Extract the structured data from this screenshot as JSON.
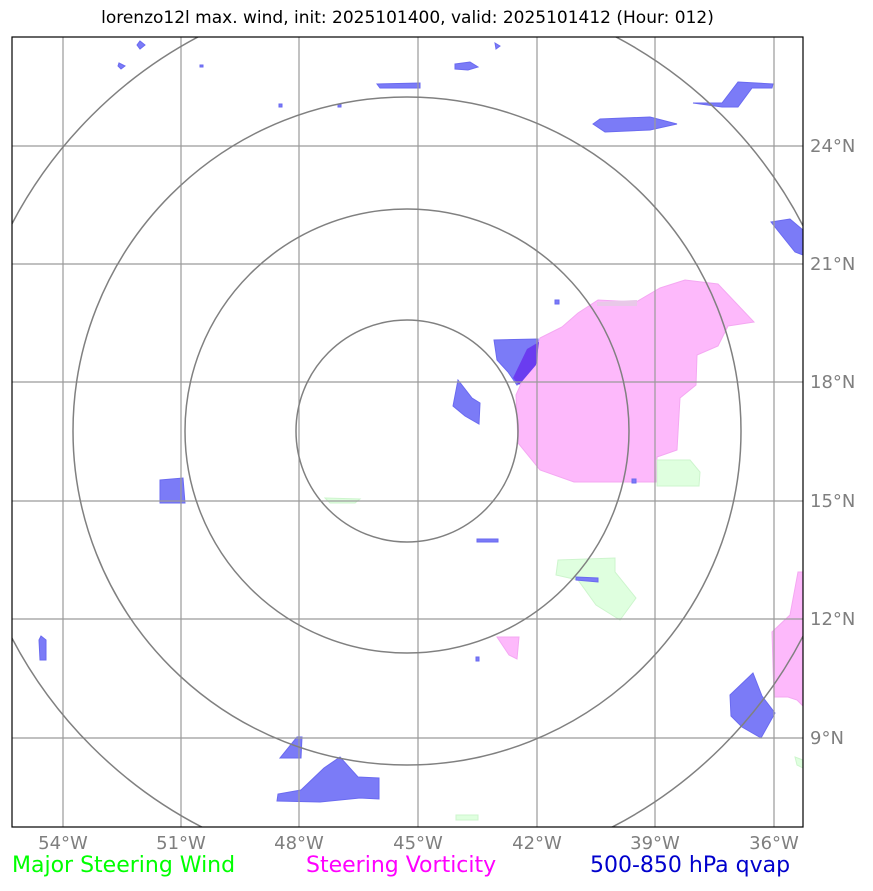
{
  "title": "lorenzo12l max. wind, init: 2025101400, valid: 2025101412 (Hour: 012)",
  "lon_labels": [
    "54°W",
    "51°W",
    "48°W",
    "45°W",
    "42°W",
    "39°W",
    "36°W"
  ],
  "lat_labels": [
    "24°N",
    "21°N",
    "18°N",
    "15°N",
    "12°N",
    "9°N"
  ],
  "legend": {
    "wind": "Major Steering Wind",
    "vorticity": "Steering Vorticity",
    "qvap": "500-850 hPa qvap"
  },
  "colors": {
    "wind": "#00ff00",
    "vorticity": "#ff00ff",
    "qvap": "#0000cc",
    "qvap_fill": "#7b7bf7",
    "vorticity_fill": "#fdb9fb",
    "wind_fill": "#dfffdf",
    "grid": "#999999",
    "rings": "#808080"
  }
}
